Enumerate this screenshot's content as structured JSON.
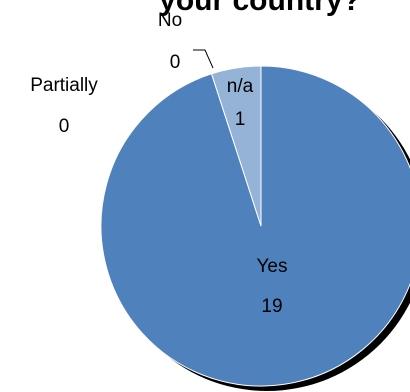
{
  "chart_data": {
    "type": "pie",
    "title": "your country?",
    "slices": [
      {
        "label": "Yes",
        "value": 19,
        "color": "#4f81bd"
      },
      {
        "label": "n/a",
        "value": 1,
        "color": "#95b3d7"
      },
      {
        "label": "No",
        "value": 0,
        "color": "#c0504d"
      },
      {
        "label": "Partially",
        "value": 0,
        "color": "#9bbb59"
      }
    ],
    "start_position": "top",
    "direction": "clockwise",
    "shadow_color": "#000000",
    "edge_color": "#ffffff"
  }
}
